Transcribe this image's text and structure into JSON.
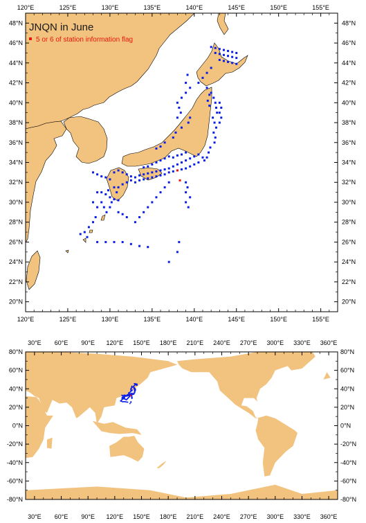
{
  "colors": {
    "land": "#f2c27f",
    "station_normal": "#0b1ee8",
    "station_flagged": "#e8160b",
    "frame": "#000000",
    "sea": "#ffffff"
  },
  "top_map": {
    "title": "JNQN in June",
    "legend_label": "5 or 6 of station information flag",
    "lon_range": [
      120,
      157
    ],
    "lat_range": [
      19,
      49
    ],
    "lon_ticks": [
      "120°E",
      "125°E",
      "130°E",
      "135°E",
      "140°E",
      "145°E",
      "150°E",
      "155°E"
    ],
    "lat_ticks": [
      "20°N",
      "22°N",
      "24°N",
      "26°N",
      "28°N",
      "30°N",
      "32°N",
      "34°N",
      "36°N",
      "38°N",
      "40°N",
      "42°N",
      "44°N",
      "46°N",
      "48°N"
    ]
  },
  "bottom_map": {
    "lon_range": [
      20,
      370
    ],
    "lat_range": [
      -80,
      80
    ],
    "lon_ticks": [
      "30°E",
      "60°E",
      "90°E",
      "120°E",
      "150°E",
      "180°E",
      "210°E",
      "240°E",
      "270°E",
      "300°E",
      "330°E",
      "360°E"
    ],
    "lat_ticks": [
      "80°N",
      "60°N",
      "40°N",
      "20°N",
      "0°N",
      "-20°N",
      "-40°N",
      "-60°N",
      "-80°N"
    ]
  },
  "stations": {
    "normal": [
      [
        142.0,
        45.6
      ],
      [
        142.5,
        45.5
      ],
      [
        143.0,
        45.4
      ],
      [
        143.5,
        45.3
      ],
      [
        144.0,
        45.2
      ],
      [
        144.5,
        45.1
      ],
      [
        145.0,
        45.0
      ],
      [
        142.5,
        45.0
      ],
      [
        143.0,
        44.9
      ],
      [
        143.5,
        44.8
      ],
      [
        144.0,
        44.7
      ],
      [
        144.5,
        44.6
      ],
      [
        145.0,
        44.5
      ],
      [
        143.0,
        44.3
      ],
      [
        143.5,
        44.2
      ],
      [
        144.0,
        44.1
      ],
      [
        144.5,
        44.0
      ],
      [
        145.0,
        43.9
      ],
      [
        142.0,
        43.5
      ],
      [
        141.5,
        43.0
      ],
      [
        141.0,
        42.5
      ],
      [
        140.5,
        42.0
      ],
      [
        139.2,
        42.8
      ],
      [
        139.0,
        42.0
      ],
      [
        139.5,
        41.5
      ],
      [
        139.0,
        41.0
      ],
      [
        141.5,
        41.5
      ],
      [
        142.0,
        41.0
      ],
      [
        142.3,
        40.5
      ],
      [
        142.5,
        40.0
      ],
      [
        142.6,
        39.5
      ],
      [
        142.7,
        39.0
      ],
      [
        142.2,
        38.5
      ],
      [
        142.4,
        38.0
      ],
      [
        142.6,
        37.5
      ],
      [
        142.3,
        37.0
      ],
      [
        142.5,
        36.5
      ],
      [
        142.4,
        36.0
      ],
      [
        141.9,
        35.5
      ],
      [
        141.7,
        35.0
      ],
      [
        141.5,
        34.5
      ],
      [
        141.2,
        34.2
      ],
      [
        143.0,
        40.0
      ],
      [
        143.2,
        39.5
      ],
      [
        143.0,
        39.0
      ],
      [
        143.2,
        38.5
      ],
      [
        143.0,
        38.0
      ],
      [
        141.8,
        40.8
      ],
      [
        141.6,
        40.2
      ],
      [
        141.8,
        39.7
      ],
      [
        138.5,
        40.5
      ],
      [
        138.0,
        40.0
      ],
      [
        138.2,
        39.5
      ],
      [
        138.4,
        39.0
      ],
      [
        138.0,
        38.5
      ],
      [
        139.5,
        38.5
      ],
      [
        139.3,
        38.0
      ],
      [
        138.5,
        37.5
      ],
      [
        137.8,
        37.0
      ],
      [
        137.5,
        36.5
      ],
      [
        136.5,
        36.0
      ],
      [
        136.0,
        35.6
      ],
      [
        135.5,
        35.4
      ],
      [
        130.5,
        33.0
      ],
      [
        131.0,
        33.2
      ],
      [
        131.5,
        33.0
      ],
      [
        132.0,
        32.8
      ],
      [
        132.5,
        32.6
      ],
      [
        133.0,
        32.5
      ],
      [
        133.5,
        32.7
      ],
      [
        134.0,
        32.8
      ],
      [
        134.5,
        32.9
      ],
      [
        135.0,
        33.0
      ],
      [
        135.5,
        33.1
      ],
      [
        136.0,
        33.2
      ],
      [
        136.5,
        33.3
      ],
      [
        137.0,
        33.4
      ],
      [
        137.5,
        33.6
      ],
      [
        138.0,
        33.8
      ],
      [
        138.5,
        34.0
      ],
      [
        139.0,
        34.2
      ],
      [
        139.5,
        34.4
      ],
      [
        140.0,
        34.6
      ],
      [
        140.5,
        34.8
      ],
      [
        141.0,
        34.5
      ],
      [
        132.0,
        32.0
      ],
      [
        132.5,
        32.2
      ],
      [
        133.0,
        32.0
      ],
      [
        133.5,
        32.2
      ],
      [
        134.0,
        32.3
      ],
      [
        134.5,
        32.4
      ],
      [
        135.0,
        32.5
      ],
      [
        135.5,
        32.6
      ],
      [
        136.0,
        32.7
      ],
      [
        136.5,
        32.8
      ],
      [
        137.0,
        33.0
      ],
      [
        137.5,
        33.1
      ],
      [
        138.0,
        33.2
      ],
      [
        138.5,
        33.3
      ],
      [
        139.0,
        33.4
      ],
      [
        139.5,
        33.6
      ],
      [
        140.0,
        33.8
      ],
      [
        140.5,
        34.0
      ],
      [
        134.0,
        33.5
      ],
      [
        134.5,
        33.6
      ],
      [
        135.0,
        33.8
      ],
      [
        135.5,
        34.0
      ],
      [
        136.0,
        34.2
      ],
      [
        136.5,
        34.4
      ],
      [
        137.0,
        34.6
      ],
      [
        137.5,
        34.5
      ],
      [
        138.0,
        34.7
      ],
      [
        138.5,
        34.8
      ],
      [
        139.0,
        35.0
      ],
      [
        128.0,
        33.0
      ],
      [
        128.5,
        32.8
      ],
      [
        129.0,
        32.6
      ],
      [
        129.5,
        32.5
      ],
      [
        130.0,
        32.3
      ],
      [
        128.5,
        31.0
      ],
      [
        129.0,
        31.0
      ],
      [
        129.5,
        30.8
      ],
      [
        130.0,
        30.5
      ],
      [
        130.5,
        30.3
      ],
      [
        131.0,
        30.2
      ],
      [
        129.0,
        30.0
      ],
      [
        129.3,
        29.5
      ],
      [
        129.6,
        29.0
      ],
      [
        130.0,
        29.5
      ],
      [
        130.2,
        30.0
      ],
      [
        130.5,
        31.5
      ],
      [
        131.0,
        31.5
      ],
      [
        131.5,
        31.8
      ],
      [
        128.5,
        29.5
      ],
      [
        128.0,
        30.0
      ],
      [
        129.8,
        31.2
      ],
      [
        130.8,
        31.0
      ],
      [
        128.3,
        28.5
      ],
      [
        128.0,
        28.0
      ],
      [
        127.5,
        27.5
      ],
      [
        127.0,
        27.0
      ],
      [
        127.3,
        26.5
      ],
      [
        126.5,
        26.8
      ],
      [
        128.5,
        26.0
      ],
      [
        129.5,
        26.0
      ],
      [
        130.5,
        26.0
      ],
      [
        131.5,
        26.0
      ],
      [
        132.5,
        25.8
      ],
      [
        133.5,
        25.6
      ],
      [
        134.5,
        25.5
      ],
      [
        138.2,
        26.0
      ],
      [
        137.0,
        24.0
      ],
      [
        138.0,
        25.0
      ],
      [
        139.0,
        30.0
      ],
      [
        139.0,
        31.0
      ],
      [
        139.2,
        31.5
      ],
      [
        139.0,
        32.0
      ],
      [
        139.3,
        29.5
      ],
      [
        139.5,
        30.5
      ],
      [
        131.0,
        29.0
      ],
      [
        131.5,
        28.8
      ],
      [
        132.0,
        28.5
      ],
      [
        136.0,
        31.0
      ],
      [
        136.5,
        31.5
      ],
      [
        137.0,
        32.0
      ],
      [
        133.0,
        28.0
      ],
      [
        133.5,
        28.5
      ],
      [
        134.0,
        29.0
      ],
      [
        134.5,
        29.5
      ],
      [
        135.0,
        30.0
      ],
      [
        135.5,
        30.5
      ]
    ],
    "flagged": [
      [
        138.3,
        32.2
      ],
      [
        138.0,
        33.2
      ]
    ]
  }
}
